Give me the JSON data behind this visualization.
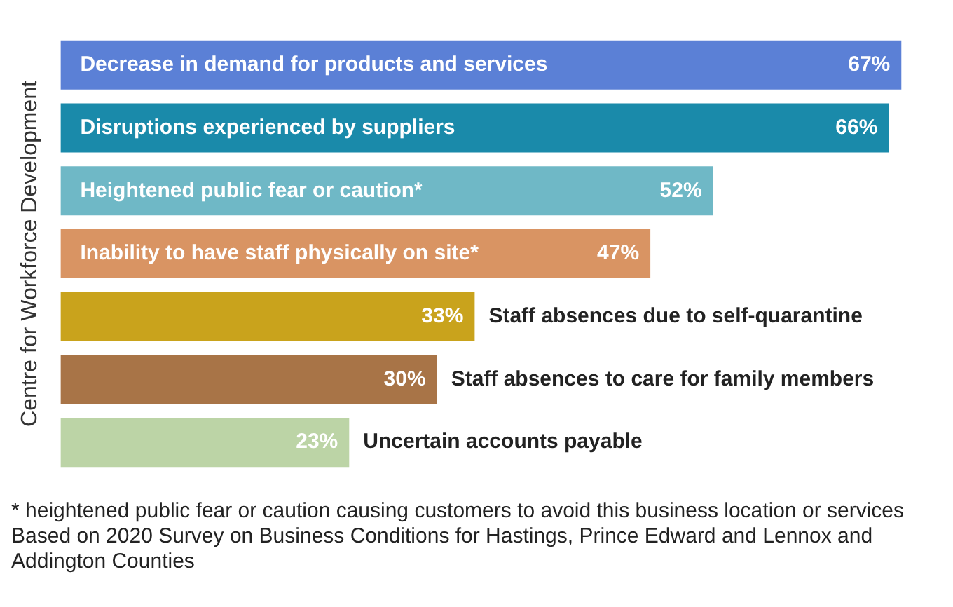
{
  "chart_data": {
    "type": "bar",
    "orientation": "horizontal",
    "ylabel": "Centre for Workforce Development",
    "categories": [
      "Decrease in demand for products and services",
      "Disruptions experienced by suppliers",
      "Heightened public fear or caution*",
      "Inability to have staff physically on site*",
      "Staff absences due to self-quarantine",
      "Staff absences to care for family members",
      "Uncertain accounts payable"
    ],
    "values": [
      67,
      66,
      52,
      47,
      33,
      30,
      23
    ],
    "colors": [
      "#5b80d6",
      "#1a8aaa",
      "#6fb8c6",
      "#d99463",
      "#c9a31c",
      "#a87447",
      "#bcd4a6"
    ],
    "value_labels": [
      "67%",
      "66%",
      "52%",
      "47%",
      "33%",
      "30%",
      "23%"
    ],
    "tick_labels": false,
    "legend": false,
    "annotations": [
      "* heightened public fear or caution causing customers to avoid this business location or services",
      "Based on 2020 Survey on Business Conditions for Hastings, Prince Edward and Lennox and Addington Counties"
    ]
  }
}
